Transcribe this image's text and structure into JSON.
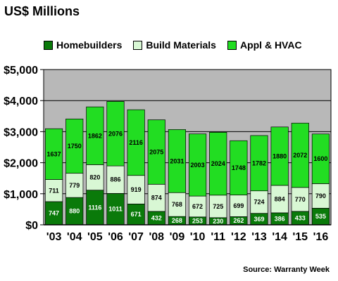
{
  "title": "US$ Millions",
  "source": "Source: Warranty Week",
  "colors": {
    "homebuilders": "#0a7a0a",
    "build_materials": "#d8f7d4",
    "appl_hvac": "#22dd22",
    "plot_bg": "#b8b8b8",
    "border": "#000000"
  },
  "legend": [
    {
      "name": "Homebuilders",
      "color": "#0a7a0a"
    },
    {
      "name": "Build Materials",
      "color": "#d8f7d4"
    },
    {
      "name": "Appl & HVAC",
      "color": "#22dd22"
    }
  ],
  "chart_data": {
    "type": "bar",
    "stacked": true,
    "title": "US$ Millions",
    "categories": [
      "'03",
      "'04",
      "'05",
      "'06",
      "'07",
      "'08",
      "'09",
      "'10",
      "'11",
      "'12",
      "'13",
      "'14",
      "'15",
      "'16"
    ],
    "series": [
      {
        "name": "Homebuilders",
        "values": [
          747,
          880,
          1116,
          1011,
          671,
          432,
          268,
          253,
          230,
          262,
          369,
          386,
          433,
          535
        ]
      },
      {
        "name": "Build Materials",
        "values": [
          711,
          779,
          820,
          886,
          919,
          874,
          768,
          672,
          725,
          699,
          724,
          884,
          770,
          790
        ]
      },
      {
        "name": "Appl & HVAC",
        "values": [
          1637,
          1750,
          1862,
          2076,
          2116,
          2075,
          2031,
          2003,
          2024,
          1748,
          1782,
          1880,
          2072,
          1600
        ]
      }
    ],
    "y_ticks": [
      "$0",
      "$1,000",
      "$2,000",
      "$3,000",
      "$4,000",
      "$5,000"
    ],
    "ylim": [
      0,
      5000
    ],
    "grid": true,
    "legend_position": "top",
    "source": "Source: Warranty Week"
  }
}
